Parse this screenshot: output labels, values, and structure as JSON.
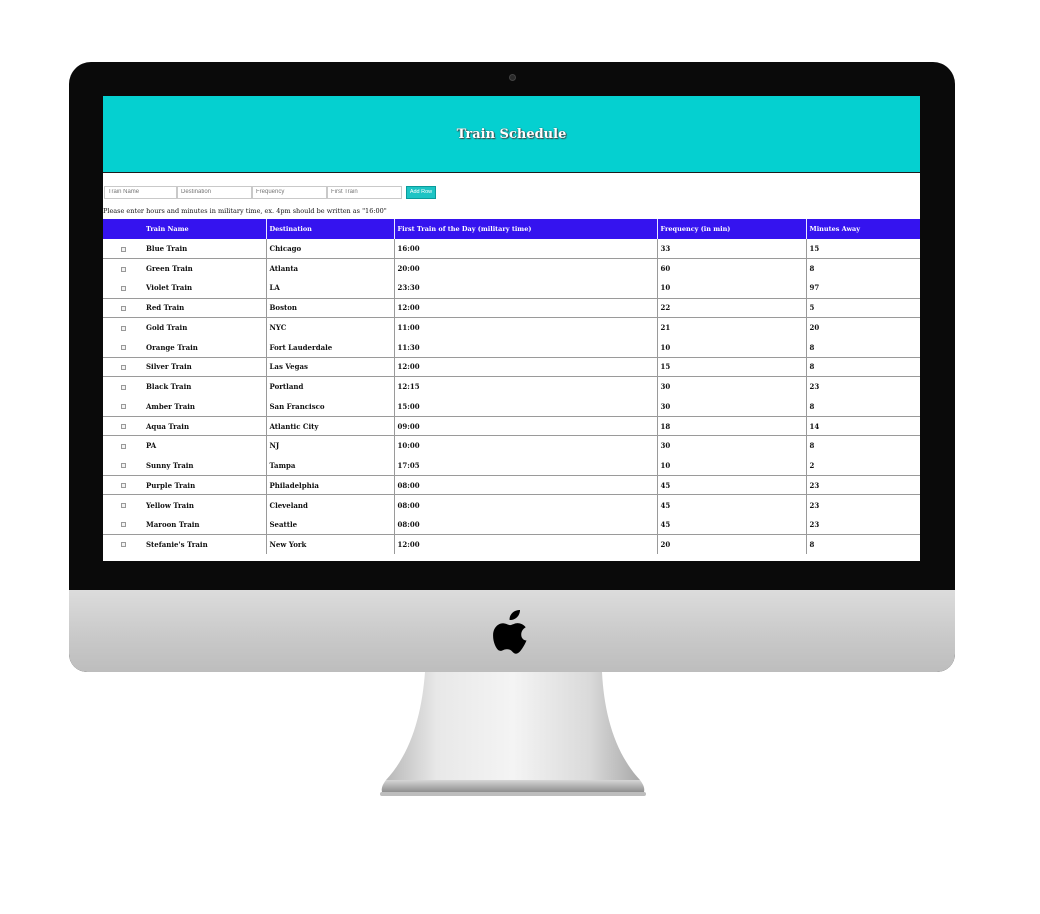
{
  "app": {
    "title": "Train Schedule"
  },
  "form": {
    "train_name_placeholder": "Train Name",
    "destination_placeholder": "Destination",
    "frequency_placeholder": "Frequency",
    "first_train_placeholder": "First Train",
    "add_button_label": "Add Row",
    "note": "Please enter hours and minutes in military time, ex. 4pm should be written as \"16:00\""
  },
  "table": {
    "headers": [
      "",
      "Train Name",
      "Destination",
      "First Train of the Day (military time)",
      "Frequency (in min)",
      "Minutes Away"
    ],
    "rows": [
      {
        "name": "Blue Train",
        "destination": "Chicago",
        "first": "16:00",
        "frequency": "33",
        "minutes_away": "15",
        "sep": true
      },
      {
        "name": "Green Train",
        "destination": "Atlanta",
        "first": "20:00",
        "frequency": "60",
        "minutes_away": "8",
        "sep": true
      },
      {
        "name": "Violet Train",
        "destination": "LA",
        "first": "23:30",
        "frequency": "10",
        "minutes_away": "97",
        "sep": false
      },
      {
        "name": "Red Train",
        "destination": "Boston",
        "first": "12:00",
        "frequency": "22",
        "minutes_away": "5",
        "sep": true
      },
      {
        "name": "Gold Train",
        "destination": "NYC",
        "first": "11:00",
        "frequency": "21",
        "minutes_away": "20",
        "sep": true
      },
      {
        "name": "Orange Train",
        "destination": "Fort Lauderdale",
        "first": "11:30",
        "frequency": "10",
        "minutes_away": "8",
        "sep": false
      },
      {
        "name": "Silver Train",
        "destination": "Las Vegas",
        "first": "12:00",
        "frequency": "15",
        "minutes_away": "8",
        "sep": true
      },
      {
        "name": "Black Train",
        "destination": "Portland",
        "first": "12:15",
        "frequency": "30",
        "minutes_away": "23",
        "sep": true
      },
      {
        "name": "Amber Train",
        "destination": "San Francisco",
        "first": "15:00",
        "frequency": "30",
        "minutes_away": "8",
        "sep": false
      },
      {
        "name": "Aqua Train",
        "destination": "Atlantic City",
        "first": "09:00",
        "frequency": "18",
        "minutes_away": "14",
        "sep": true
      },
      {
        "name": "PA",
        "destination": "NJ",
        "first": "10:00",
        "frequency": "30",
        "minutes_away": "8",
        "sep": true
      },
      {
        "name": "Sunny Train",
        "destination": "Tampa",
        "first": "17:05",
        "frequency": "10",
        "minutes_away": "2",
        "sep": false
      },
      {
        "name": "Purple Train",
        "destination": "Philadelphia",
        "first": "08:00",
        "frequency": "45",
        "minutes_away": "23",
        "sep": true
      },
      {
        "name": "Yellow Train",
        "destination": "Cleveland",
        "first": "08:00",
        "frequency": "45",
        "minutes_away": "23",
        "sep": true
      },
      {
        "name": "Maroon Train",
        "destination": "Seattle",
        "first": "08:00",
        "frequency": "45",
        "minutes_away": "23",
        "sep": false
      },
      {
        "name": "Stefanie's Train",
        "destination": "New York",
        "first": "12:00",
        "frequency": "20",
        "minutes_away": "8",
        "sep": true
      }
    ]
  },
  "colors": {
    "header_bg": "#05d0d0",
    "table_header_bg": "#3513ef",
    "button_bg": "#1dc4c4"
  }
}
